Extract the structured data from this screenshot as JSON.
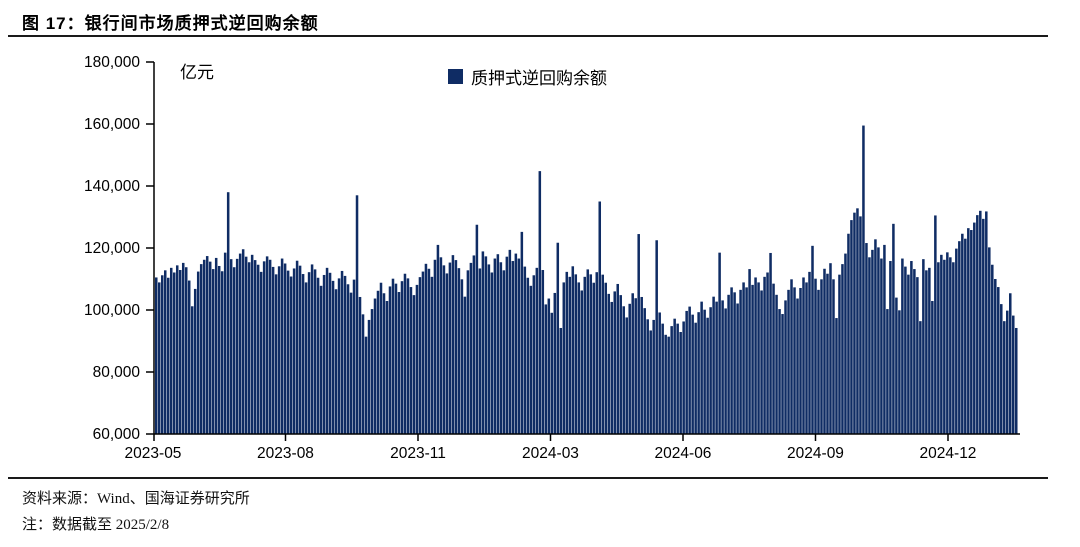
{
  "title": "图 17：银行间市场质押式逆回购余额",
  "unit_label": "亿元",
  "legend": {
    "label": "质押式逆回购余额",
    "color": "#0F2C64"
  },
  "footer": {
    "source": "资料来源：Wind、国海证券研究所",
    "note": "注：数据截至 2025/2/8"
  },
  "colors": {
    "bar": "#0F2C64",
    "axis": "#000000",
    "rule": "#1a1a1a",
    "text": "#000000"
  },
  "chart_data": {
    "type": "bar",
    "title": "银行间市场质押式逆回购余额",
    "series_name": "质押式逆回购余额",
    "unit": "亿元",
    "ylabel": "亿元",
    "xlabel": "",
    "grid": false,
    "legend_position": "top-center",
    "ylim": [
      60000,
      180000
    ],
    "y_tick_values": [
      60000,
      80000,
      100000,
      120000,
      140000,
      160000,
      180000
    ],
    "y_tick_labels": [
      "60,000",
      "80,000",
      "100,000",
      "120,000",
      "140,000",
      "160,000",
      "180,000"
    ],
    "x_tick_labels": [
      "2023-05",
      "2023-08",
      "2023-11",
      "2024-03",
      "2024-06",
      "2024-09",
      "2024-12"
    ],
    "x_start": "2023-05",
    "x_end": "2025-02",
    "values": [
      110500,
      108900,
      111200,
      112800,
      110400,
      113600,
      112100,
      114400,
      112900,
      115200,
      113800,
      109500,
      101200,
      106800,
      112400,
      114800,
      116200,
      117400,
      115600,
      113200,
      116800,
      114200,
      112500,
      118500,
      138000,
      116400,
      113800,
      116500,
      118200,
      119600,
      117200,
      115400,
      117800,
      116100,
      114600,
      112300,
      115700,
      117300,
      116200,
      113900,
      111500,
      114100,
      116600,
      115000,
      112700,
      110800,
      113400,
      115900,
      114300,
      111600,
      108900,
      112200,
      114700,
      113100,
      110400,
      107800,
      111300,
      113600,
      112000,
      109400,
      106700,
      110200,
      112600,
      111000,
      108300,
      105600,
      109800,
      137000,
      104200,
      98600,
      91400,
      96800,
      100300,
      103700,
      106200,
      108800,
      105400,
      102900,
      107600,
      110100,
      108500,
      105800,
      109300,
      111700,
      110200,
      107400,
      104800,
      108100,
      110600,
      112400,
      114900,
      113300,
      110700,
      116200,
      121000,
      117000,
      114400,
      111800,
      115300,
      117700,
      116100,
      113500,
      109900,
      104300,
      112800,
      115200,
      117600,
      127500,
      113400,
      118900,
      117300,
      114700,
      112100,
      116600,
      118000,
      115400,
      112800,
      117200,
      119400,
      115800,
      118200,
      116600,
      125200,
      114000,
      110400,
      107800,
      111200,
      113600,
      144800,
      112900,
      101800,
      103700,
      99100,
      105500,
      121700,
      94200,
      108900,
      112300,
      110700,
      114100,
      111500,
      108900,
      106300,
      110700,
      113100,
      111500,
      108800,
      112200,
      135000,
      111400,
      108800,
      105200,
      102600,
      106000,
      108400,
      104800,
      101200,
      97600,
      102000,
      105400,
      103800,
      124500,
      104200,
      100600,
      97000,
      93400,
      96800,
      122500,
      99200,
      95600,
      92000,
      91400,
      94800,
      97200,
      95600,
      92900,
      96300,
      99700,
      101100,
      98500,
      95900,
      99300,
      102700,
      100100,
      97500,
      100900,
      104300,
      102700,
      118500,
      103100,
      100500,
      104900,
      107300,
      105700,
      102100,
      106500,
      108900,
      107300,
      113200,
      108100,
      110500,
      108900,
      106300,
      110700,
      112100,
      118400,
      108500,
      104900,
      100300,
      98700,
      103100,
      106500,
      109900,
      107300,
      103700,
      107100,
      110500,
      108900,
      112300,
      120700,
      110100,
      106500,
      109900,
      113300,
      111700,
      115100,
      109900,
      97400,
      111400,
      114800,
      118200,
      124600,
      129000,
      131400,
      132800,
      130200,
      159500,
      121600,
      117000,
      119400,
      122800,
      120200,
      116600,
      121000,
      100300,
      115800,
      127800,
      104000,
      99900,
      116600,
      114000,
      111400,
      115800,
      113200,
      110600,
      96400,
      116400,
      112800,
      113600,
      102900,
      130500,
      115400,
      117800,
      116200,
      118600,
      117000,
      115400,
      119800,
      122200,
      124600,
      123000,
      126400,
      125800,
      128200,
      130600,
      132000,
      129400,
      131800,
      120200,
      114600,
      110000,
      107400,
      101900,
      96400,
      99800,
      105400,
      98200,
      94200
    ]
  }
}
